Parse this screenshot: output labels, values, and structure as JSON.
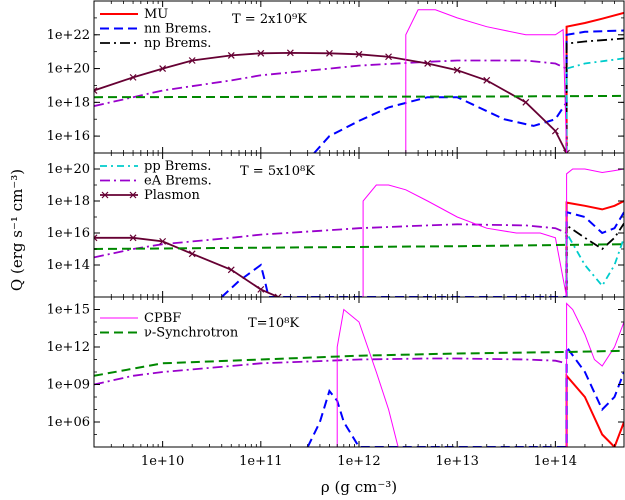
{
  "figure": {
    "ylabel": "Q (erg s⁻¹ cm⁻³)",
    "xlabel": "ρ (g cm⁻³)",
    "x_ticks": [
      "1e+10",
      "1e+11",
      "1e+12",
      "1e+13",
      "1e+14"
    ]
  },
  "colors": {
    "MU": "#ff0000",
    "nn": "#0000ff",
    "np": "#000000",
    "pp": "#00cccc",
    "eA": "#9900cc",
    "plasmon": "#660033",
    "cpbf": "#ff00ff",
    "sync": "#008800"
  },
  "chart_data": [
    {
      "type": "line",
      "temperature_label": "T = 2x10⁹K",
      "xscale": "log",
      "yscale": "log",
      "xlim": [
        2000000000.0,
        500000000000000.0
      ],
      "ylim": [
        1000000000000000.0,
        1e+24
      ],
      "yticks": [
        "1e+16",
        "1e+18",
        "1e+20",
        "1e+22"
      ],
      "legend": [
        "MU",
        "nn Brems.",
        "np Brems."
      ],
      "series": [
        {
          "name": "MU",
          "key": "MU",
          "style": "solid",
          "x": [
            130000000000000.0,
            130000000000000.0,
            200000000000000.0,
            300000000000000.0,
            500000000000000.0
          ],
          "y": [
            1000000000000000.0,
            3e+22,
            5e+22,
            9e+22,
            2e+23
          ]
        },
        {
          "name": "nn Brems.",
          "key": "nn",
          "style": "dash",
          "x": [
            350000000000.0,
            500000000000.0,
            1000000000000.0,
            2000000000000.0,
            5000000000000.0,
            10000000000000.0,
            30000000000000.0,
            60000000000000.0,
            100000000000000.0,
            130000000000000.0,
            130000000000000.0,
            200000000000000.0,
            500000000000000.0
          ],
          "y": [
            1000000000000000.0,
            1e+16,
            8e+16,
            5e+17,
            2e+18,
            2e+18,
            1e+17,
            4e+16,
            1e+17,
            1e+18,
            1e+22,
            1.5e+22,
            1.8e+22
          ]
        },
        {
          "name": "np Brems.",
          "key": "np",
          "style": "dashdot",
          "x": [
            130000000000000.0,
            130000000000000.0,
            200000000000000.0,
            500000000000000.0
          ],
          "y": [
            1000000000000000.0,
            3e+21,
            4e+21,
            6e+21
          ]
        },
        {
          "name": "pp Brems.",
          "key": "pp",
          "style": "dashdot2",
          "x": [
            130000000000000.0,
            130000000000000.0,
            200000000000000.0,
            500000000000000.0
          ],
          "y": [
            1000000000000000.0,
            1e+20,
            2e+20,
            4e+20
          ]
        },
        {
          "name": "eA Brems.",
          "key": "eA",
          "style": "dashdot",
          "x": [
            2000000000.0,
            5000000000.0,
            10000000000.0,
            50000000000.0,
            100000000000.0,
            500000000000.0,
            1000000000000.0,
            5000000000000.0,
            10000000000000.0,
            50000000000000.0,
            100000000000000.0,
            130000000000000.0
          ],
          "y": [
            6e+17,
            2e+18,
            5e+18,
            2e+19,
            4e+19,
            1e+20,
            1.5e+20,
            2.5e+20,
            3e+20,
            3e+20,
            2e+20,
            1e+20
          ]
        },
        {
          "name": "Plasmon",
          "key": "plasmon",
          "style": "solid-x",
          "x": [
            2000000000.0,
            5000000000.0,
            10000000000.0,
            20000000000.0,
            50000000000.0,
            100000000000.0,
            200000000000.0,
            500000000000.0,
            1000000000000.0,
            2000000000000.0,
            5000000000000.0,
            10000000000000.0,
            20000000000000.0,
            50000000000000.0,
            100000000000000.0,
            130000000000000.0
          ],
          "y": [
            5e+18,
            3e+19,
            1e+20,
            3e+20,
            6e+20,
            8e+20,
            8.5e+20,
            8e+20,
            7e+20,
            5e+20,
            2e+20,
            8e+19,
            2e+19,
            1e+18,
            2e+16,
            1000000000000000.0
          ]
        },
        {
          "name": "CPBF",
          "key": "cpbf",
          "style": "thin",
          "x": [
            3000000000000.0,
            3000000000000.0,
            4000000000000.0,
            6000000000000.0,
            10000000000000.0,
            20000000000000.0,
            50000000000000.0,
            100000000000000.0,
            120000000000000.0,
            130000000000000.0
          ],
          "y": [
            1000000000000000.0,
            1e+22,
            3e+23,
            3e+23,
            1e+23,
            3e+22,
            1e+22,
            1e+22,
            2e+22,
            1000000000000000.0
          ]
        },
        {
          "name": "ν-Synchrotron",
          "key": "sync",
          "style": "dash",
          "x": [
            2000000000.0,
            100000000000.0,
            10000000000000.0,
            130000000000000.0,
            500000000000000.0
          ],
          "y": [
            2e+18,
            2.1e+18,
            2.2e+18,
            2.3e+18,
            2.4e+18
          ]
        }
      ]
    },
    {
      "type": "line",
      "temperature_label": "T = 5x10⁸K",
      "xscale": "log",
      "yscale": "log",
      "xlim": [
        2000000000.0,
        500000000000000.0
      ],
      "ylim": [
        1000000000000.0,
        1e+21
      ],
      "yticks": [
        "1e+14",
        "1e+16",
        "1e+18",
        "1e+20"
      ],
      "legend": [
        "pp Brems.",
        "eA Brems.",
        "Plasmon"
      ],
      "series": [
        {
          "name": "MU",
          "key": "MU",
          "style": "solid",
          "x": [
            130000000000000.0,
            130000000000000.0,
            200000000000000.0,
            300000000000000.0,
            400000000000000.0,
            500000000000000.0
          ],
          "y": [
            1000000000000.0,
            8e+17,
            5e+17,
            3e+17,
            5e+17,
            1e+18
          ]
        },
        {
          "name": "nn Brems.",
          "key": "nn",
          "style": "dash",
          "x": [
            40000000000.0,
            60000000000.0,
            100000000000.0,
            110000000000.0,
            120000000000.0,
            130000000000000.0,
            130000000000000.0,
            200000000000000.0,
            300000000000000.0,
            400000000000000.0,
            500000000000000.0
          ],
          "y": [
            1000000000000.0,
            10000000000000.0,
            100000000000000.0,
            10000000000000.0,
            1000000000000.0,
            1000000000000.0,
            2e+17,
            1e+17,
            1e+16,
            2e+16,
            2e+17
          ]
        },
        {
          "name": "np Brems.",
          "key": "np",
          "style": "dashdot",
          "x": [
            130000000000000.0,
            130000000000000.0,
            200000000000000.0,
            300000000000000.0,
            400000000000000.0,
            500000000000000.0
          ],
          "y": [
            1000000000000.0,
            3e+16,
            5000000000000000.0,
            1000000000000000.0,
            5000000000000000.0,
            4e+16
          ]
        },
        {
          "name": "pp Brems.",
          "key": "pp",
          "style": "dashdot2",
          "x": [
            130000000000000.0,
            130000000000000.0,
            200000000000000.0,
            300000000000000.0,
            400000000000000.0,
            500000000000000.0
          ],
          "y": [
            1000000000000.0,
            1e+16,
            100000000000000.0,
            5000000000000.0,
            100000000000000.0,
            5000000000000000.0
          ]
        },
        {
          "name": "eA Brems.",
          "key": "eA",
          "style": "dashdot",
          "x": [
            2000000000.0,
            5000000000.0,
            10000000000.0,
            50000000000.0,
            100000000000.0,
            500000000000.0,
            1000000000000.0,
            5000000000000.0,
            10000000000000.0,
            50000000000000.0,
            100000000000000.0,
            130000000000000.0
          ],
          "y": [
            300000000000000.0,
            1000000000000000.0,
            2000000000000000.0,
            5000000000000000.0,
            8000000000000000.0,
            1.5e+16,
            2e+16,
            3e+16,
            3.5e+16,
            3e+16,
            2e+16,
            1e+16
          ]
        },
        {
          "name": "Plasmon",
          "key": "plasmon",
          "style": "solid-x",
          "x": [
            2000000000.0,
            5000000000.0,
            10000000000.0,
            20000000000.0,
            50000000000.0,
            100000000000.0,
            150000000000.0,
            200000000000.0
          ],
          "y": [
            5000000000000000.0,
            5000000000000000.0,
            3000000000000000.0,
            500000000000000.0,
            50000000000000.0,
            3000000000000.0,
            1000000000000.0,
            100000000000.0
          ]
        },
        {
          "name": "CPBF",
          "key": "cpbf",
          "style": "thin",
          "x": [
            1100000000000.0,
            1100000000000.0,
            1500000000000.0,
            2000000000000.0,
            3000000000000.0,
            5000000000000.0,
            10000000000000.0,
            20000000000000.0,
            40000000000000.0,
            70000000000000.0,
            100000000000000.0,
            130000000000000.0,
            130000000000000.0,
            150000000000000.0,
            200000000000000.0,
            300000000000000.0,
            400000000000000.0,
            500000000000000.0
          ],
          "y": [
            1000000000000.0,
            1e+18,
            1e+19,
            1e+19,
            5e+18,
            1e+18,
            1e+17,
            2e+16,
            1e+16,
            1e+16,
            5000000000000000.0,
            1000000000000.0,
            5e+19,
            1e+20,
            1e+20,
            6e+19,
            8e+19,
            1e+20
          ]
        },
        {
          "name": "ν-Synchrotron",
          "key": "sync",
          "style": "dash",
          "x": [
            2000000000.0,
            100000000000.0,
            10000000000000.0,
            130000000000000.0,
            500000000000000.0
          ],
          "y": [
            1000000000000000.0,
            1200000000000000.0,
            1500000000000000.0,
            1800000000000000.0,
            2000000000000000.0
          ]
        }
      ]
    },
    {
      "type": "line",
      "temperature_label": "T=10⁸K",
      "xscale": "log",
      "yscale": "log",
      "xlim": [
        2000000000.0,
        500000000000000.0
      ],
      "ylim": [
        10000.0,
        1e+16
      ],
      "yticks": [
        "1e+06",
        "1e+09",
        "1e+12",
        "1e+15"
      ],
      "legend": [
        "CPBF",
        "ν-Synchrotron"
      ],
      "series": [
        {
          "name": "MU",
          "key": "MU",
          "style": "solid",
          "x": [
            130000000000000.0,
            130000000000000.0,
            200000000000000.0,
            300000000000000.0,
            400000000000000.0,
            500000000000000.0
          ],
          "y": [
            10000.0,
            5000000000.0,
            100000000.0,
            100000.0,
            10000.0,
            1000000.0
          ]
        },
        {
          "name": "nn Brems.",
          "key": "nn",
          "style": "dash",
          "x": [
            300000000000.0,
            400000000000.0,
            500000000000.0,
            600000000000.0,
            700000000000.0,
            1000000000000.0,
            130000000000000.0,
            130000000000000.0,
            200000000000000.0,
            300000000000000.0,
            400000000000000.0,
            500000000000000.0
          ],
          "y": [
            10000.0,
            1000000.0,
            300000000.0,
            50000000.0,
            1000000.0,
            10000.0,
            10000.0,
            1000000000000.0,
            10000000000.0,
            10000000.0,
            100000000.0,
            10000000000.0
          ]
        },
        {
          "name": "eA Brems.",
          "key": "eA",
          "style": "dashdot",
          "x": [
            2000000000.0,
            5000000000.0,
            10000000000.0,
            50000000000.0,
            100000000000.0,
            500000000000.0,
            1000000000000.0,
            5000000000000.0,
            10000000000000.0,
            50000000000000.0,
            100000000000000.0,
            130000000000000.0
          ],
          "y": [
            1000000000.0,
            5000000000.0,
            10000000000.0,
            30000000000.0,
            50000000000.0,
            80000000000.0,
            100000000000.0,
            120000000000.0,
            120000000000.0,
            100000000000.0,
            80000000000.0,
            50000000000.0
          ]
        },
        {
          "name": "CPBF",
          "key": "cpbf",
          "style": "thin",
          "x": [
            600000000000.0,
            600000000000.0,
            700000000000.0,
            1000000000000.0,
            1500000000000.0,
            2000000000000.0,
            2500000000000.0,
            130000000000000.0,
            130000000000000.0,
            150000000000000.0,
            200000000000000.0,
            250000000000000.0,
            300000000000000.0,
            400000000000000.0,
            500000000000000.0
          ],
          "y": [
            10000.0,
            1000000000000.0,
            1000000000000000.0,
            100000000000000.0,
            10000000000.0,
            10000000.0,
            10000.0,
            10000.0,
            3000000000000000.0,
            1000000000000000.0,
            10000000000000.0,
            100000000000.0,
            30000000000.0,
            1000000000000.0,
            100000000000000.0
          ]
        },
        {
          "name": "ν-Synchrotron",
          "key": "sync",
          "style": "dash",
          "x": [
            2000000000.0,
            10000000000.0,
            100000000000.0,
            1000000000000.0,
            10000000000000.0,
            130000000000000.0,
            500000000000000.0
          ],
          "y": [
            5000000000.0,
            50000000000.0,
            100000000000.0,
            200000000000.0,
            300000000000.0,
            400000000000.0,
            500000000000.0
          ]
        }
      ]
    }
  ]
}
